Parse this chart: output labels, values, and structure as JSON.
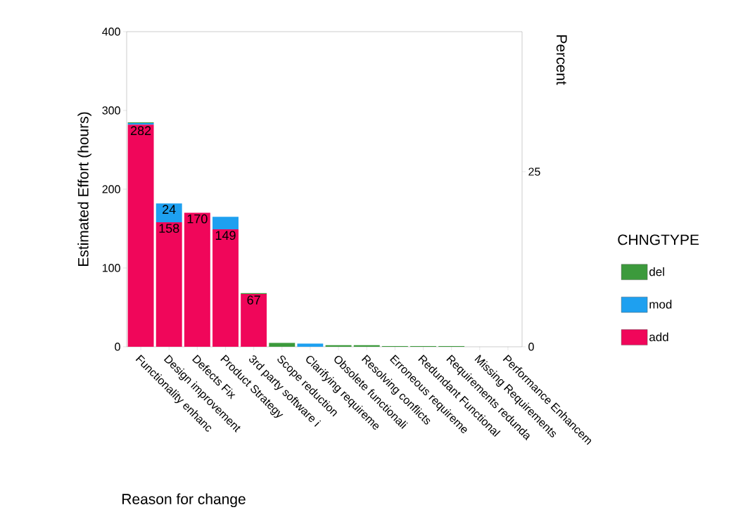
{
  "chart_data": {
    "type": "bar",
    "stacked": true,
    "xlabel": "Reason for change",
    "ylabel": "Estimated Effort (hours)",
    "y2label": "Percent",
    "legend_title": "CHNGTYPE",
    "categories": [
      "Functionality enhanc",
      "Design improvement",
      "Defects Fix",
      "Product Strategy",
      "3rd party software i",
      "Scope reduction",
      "Clarifying requireme",
      "Obsolete functionali",
      "Resolving conflicts",
      "Erroneous requireme",
      "Redundant Functional",
      "Requirements redunda",
      "Missing Requirements",
      "Performance Enhancem"
    ],
    "series": [
      {
        "name": "add",
        "color": "#f0065a",
        "values": [
          282,
          158,
          170,
          149,
          67,
          0,
          0,
          0,
          0,
          0,
          0,
          0,
          0,
          0
        ],
        "value_labels": [
          "282",
          "158",
          "170",
          "149",
          "67",
          null,
          null,
          null,
          null,
          null,
          null,
          null,
          null,
          null
        ]
      },
      {
        "name": "mod",
        "color": "#1ea0f0",
        "values": [
          2,
          24,
          0,
          16,
          0,
          0,
          4,
          0,
          0,
          0,
          0,
          0,
          0,
          0
        ],
        "value_labels": [
          null,
          "24",
          null,
          null,
          null,
          null,
          null,
          null,
          null,
          null,
          null,
          null,
          null,
          null
        ]
      },
      {
        "name": "del",
        "color": "#3c9a3c",
        "values": [
          1,
          0,
          0,
          0,
          1,
          5,
          0,
          2,
          2,
          1,
          1,
          1,
          0,
          0
        ]
      }
    ],
    "ylim": [
      0,
      400
    ],
    "yticks": [
      0,
      100,
      200,
      300,
      400
    ],
    "y2lim": [
      0,
      45
    ],
    "y2ticks": [
      0,
      25
    ],
    "legend": "right"
  }
}
